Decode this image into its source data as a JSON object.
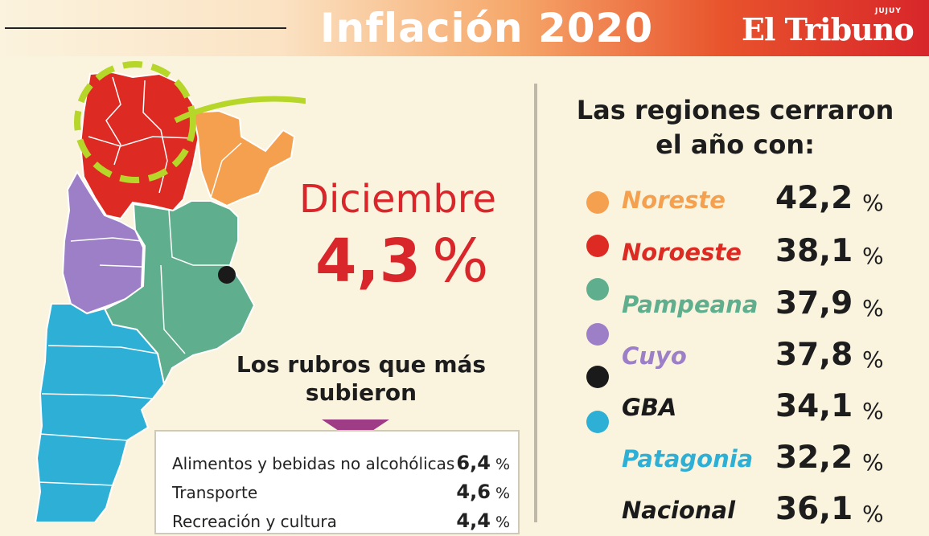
{
  "header": {
    "title": "Inflación 2020",
    "logo": "El Tribuno",
    "logo_sub": "JUJUY"
  },
  "december": {
    "label": "Diciembre",
    "value": "4,3",
    "unit": "%"
  },
  "rubros": {
    "title": "Los rubros que más subieron",
    "items": [
      {
        "label": "Alimentos y bebidas no alcohólicas",
        "value": "6,4",
        "unit": "%"
      },
      {
        "label": "Transporte",
        "value": "4,6",
        "unit": "%"
      },
      {
        "label": "Recreación y cultura",
        "value": "4,4",
        "unit": "%"
      }
    ]
  },
  "regions": {
    "title": "Las regiones cerraron el año con:",
    "colors": {
      "noreste": "#f5a04e",
      "noroeste": "#dd2a22",
      "pampeana": "#5fae8e",
      "cuyo": "#9d7fc8",
      "gba": "#1a1a1a",
      "patagonia": "#2eb0d6"
    },
    "items": [
      {
        "name": "Noreste",
        "value": "42,2",
        "unit": "%",
        "color": "#f5a04e",
        "dot": "#f5a04e"
      },
      {
        "name": "Noroeste",
        "value": "38,1",
        "unit": "%",
        "color": "#dd2a22",
        "dot": "#dd2a22"
      },
      {
        "name": "Pampeana",
        "value": "37,9",
        "unit": "%",
        "color": "#5fae8e",
        "dot": "#5fae8e"
      },
      {
        "name": "Cuyo",
        "value": "37,8",
        "unit": "%",
        "color": "#9d7fc8",
        "dot": "#9d7fc8"
      },
      {
        "name": "GBA",
        "value": "34,1",
        "unit": "%",
        "color": "#1a1a1a",
        "dot": "#1a1a1a"
      },
      {
        "name": "Patagonia",
        "value": "32,2",
        "unit": "%",
        "color": "#2eb0d6",
        "dot": "#2eb0d6"
      },
      {
        "name": "Nacional",
        "value": "36,1",
        "unit": "%",
        "color": "#1a1a1a",
        "dot": ""
      }
    ]
  },
  "chart_data": {
    "type": "table",
    "title": "Inflación 2020",
    "categories": [
      "Noreste",
      "Noroeste",
      "Pampeana",
      "Cuyo",
      "GBA",
      "Patagonia",
      "Nacional"
    ],
    "values": [
      42.2,
      38.1,
      37.9,
      37.8,
      34.1,
      32.2,
      36.1
    ],
    "december_value": 4.3,
    "rubros": [
      {
        "label": "Alimentos y bebidas no alcohólicas",
        "value": 6.4
      },
      {
        "label": "Transporte",
        "value": 4.6
      },
      {
        "label": "Recreación y cultura",
        "value": 4.4
      }
    ]
  }
}
